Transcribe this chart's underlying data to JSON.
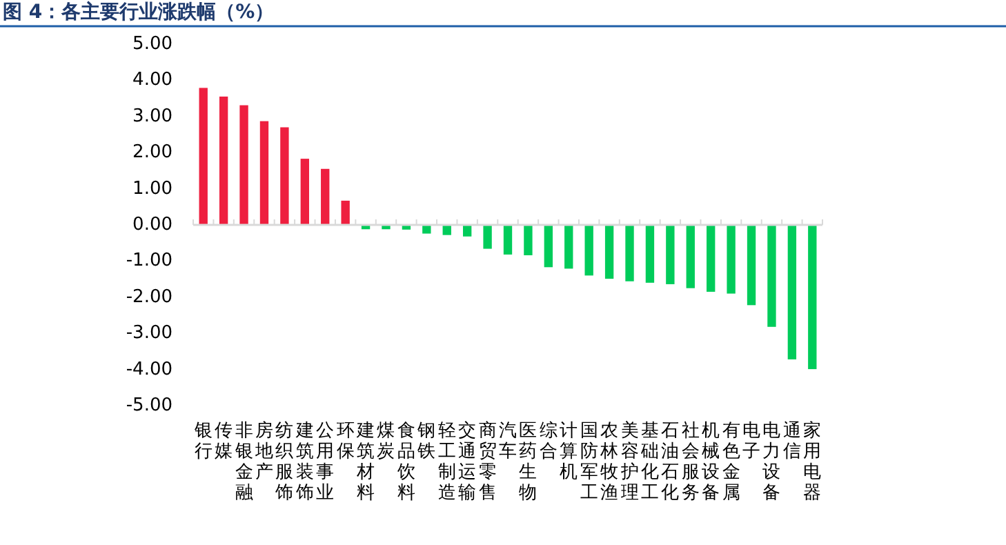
{
  "chart_data": {
    "type": "bar",
    "title": "图 4：各主要行业涨跌幅（%）",
    "categories": [
      "银行",
      "传媒",
      "非银金融",
      "房地产",
      "纺织服饰",
      "建筑装饰",
      "公用事业",
      "环保",
      "建筑材料",
      "煤炭",
      "食品饮料",
      "钢铁",
      "轻工制造",
      "交通运输",
      "商贸零售",
      "汽车",
      "医药生物",
      "综合",
      "计算机",
      "国防军工",
      "农林牧渔",
      "美容护理",
      "基础化工",
      "石油石化",
      "社会服务",
      "机械设备",
      "有色金属",
      "电子",
      "电力设备",
      "通信",
      "家用电器"
    ],
    "values": [
      3.79,
      3.55,
      3.31,
      2.87,
      2.7,
      1.83,
      1.55,
      0.67,
      -0.12,
      -0.12,
      -0.13,
      -0.24,
      -0.28,
      -0.32,
      -0.66,
      -0.82,
      -0.84,
      -1.17,
      -1.21,
      -1.4,
      -1.49,
      -1.56,
      -1.6,
      -1.64,
      -1.75,
      -1.85,
      -1.9,
      -2.22,
      -2.82,
      -3.72,
      -3.99
    ],
    "colors": [
      "#ee1f3f",
      "#ee1f3f",
      "#ee1f3f",
      "#ee1f3f",
      "#ee1f3f",
      "#ee1f3f",
      "#ee1f3f",
      "#ee1f3f",
      "#00cc5a",
      "#00cc5a",
      "#00cc5a",
      "#00cc5a",
      "#00cc5a",
      "#00cc5a",
      "#00cc5a",
      "#00cc5a",
      "#00cc5a",
      "#00cc5a",
      "#00cc5a",
      "#00cc5a",
      "#00cc5a",
      "#00cc5a",
      "#00cc5a",
      "#00cc5a",
      "#00cc5a",
      "#00cc5a",
      "#00cc5a",
      "#00cc5a",
      "#00cc5a",
      "#00cc5a",
      "#00cc5a"
    ],
    "ylim": [
      -5,
      5
    ],
    "yticks": [
      {
        "value": -5,
        "label": "-5.00"
      },
      {
        "value": -4,
        "label": "-4.00"
      },
      {
        "value": -3,
        "label": "-3.00"
      },
      {
        "value": -2,
        "label": "-2.00"
      },
      {
        "value": -1,
        "label": "-1.00"
      },
      {
        "value": 0,
        "label": "0.00"
      },
      {
        "value": 1,
        "label": "1.00"
      },
      {
        "value": 2,
        "label": "2.00"
      },
      {
        "value": 3,
        "label": "3.00"
      },
      {
        "value": 4,
        "label": "4.00"
      },
      {
        "value": 5,
        "label": "5.00"
      }
    ]
  }
}
